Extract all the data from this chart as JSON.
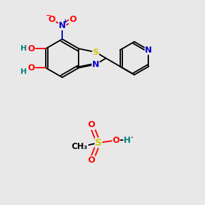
{
  "bg_color": "#e8e8e8",
  "atom_colors": {
    "C": "#000000",
    "N": "#0000cc",
    "O": "#ff0000",
    "S": "#cccc00",
    "H": "#008080"
  },
  "bond_color": "#000000",
  "bond_width": 1.4,
  "figsize": [
    3.0,
    3.0
  ],
  "dpi": 100
}
